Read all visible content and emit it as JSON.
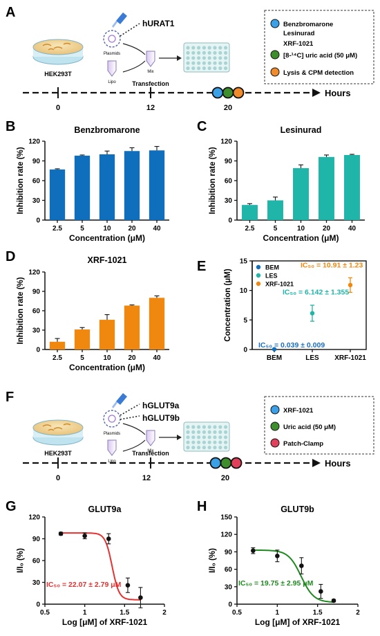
{
  "colors": {
    "bem": "#0f6fbd",
    "les": "#1fb5a8",
    "xrf": "#f0880f",
    "green": "#3a8f2e",
    "red_patch": "#e0405a",
    "glut9a_curve": "#e83030",
    "glut9b_curve": "#1e8a1e",
    "ic_blue": "#1a6fc0"
  },
  "panels": {
    "A": {
      "letter": "A",
      "target": "hURAT1",
      "cell": "HEK293T",
      "plasmids": "Plasmids",
      "lipo": "Lipo",
      "mix": "Mix",
      "transfection": "Transfection",
      "hours": "Hours",
      "ticks": [
        "0",
        "12",
        "20"
      ],
      "legend": [
        {
          "text": "Benzbromarone",
          "icon": "blue-dot"
        },
        {
          "text": "Lesinurad",
          "icon": ""
        },
        {
          "text": "XRF-1021",
          "icon": ""
        },
        {
          "text": "[8-¹⁴C] uric acid (50 μM)",
          "icon": "green-dot"
        },
        {
          "text": "Lysis & CPM detection",
          "icon": "orange-dot"
        }
      ]
    },
    "F": {
      "letter": "F",
      "target1": "hGLUT9a",
      "target2": "hGLUT9b",
      "cell": "HEK293T",
      "plasmids": "Plasmids",
      "lipo": "Lipo",
      "mix": "Mix",
      "transfection": "Transfection",
      "hours": "Hours",
      "ticks": [
        "0",
        "12",
        "20"
      ],
      "legend": [
        {
          "text": "XRF-1021",
          "icon": "blue-dot"
        },
        {
          "text": "Uric acid (50 μM)",
          "icon": "green-dot"
        },
        {
          "text": "Patch-Clamp",
          "icon": "red-dot"
        }
      ]
    }
  },
  "chart_data": [
    {
      "panel": "B",
      "type": "bar",
      "title": "Benzbromarone",
      "categories": [
        "2.5",
        "5",
        "10",
        "20",
        "40"
      ],
      "values": [
        77,
        98,
        100,
        105,
        106
      ],
      "errors": [
        1,
        1,
        5,
        5,
        6
      ],
      "xlabel": "Concentration (μM)",
      "ylabel": "Inhibition rate (%)",
      "ylim": [
        0,
        120
      ],
      "yticks": [
        0,
        30,
        60,
        90,
        120
      ],
      "color": "#0f6fbd"
    },
    {
      "panel": "C",
      "type": "bar",
      "title": "Lesinurad",
      "categories": [
        "2.5",
        "5",
        "10",
        "20",
        "40"
      ],
      "values": [
        23,
        30,
        79,
        96,
        99
      ],
      "errors": [
        2,
        5,
        5,
        3,
        1
      ],
      "xlabel": "Concentration (μM)",
      "ylabel": "Inhibition rate (%)",
      "ylim": [
        0,
        120
      ],
      "yticks": [
        0,
        30,
        60,
        90,
        120
      ],
      "color": "#1fb5a8"
    },
    {
      "panel": "D",
      "type": "bar",
      "title": "XRF-1021",
      "categories": [
        "2.5",
        "5",
        "10",
        "20",
        "40"
      ],
      "values": [
        12,
        31,
        46,
        68,
        80
      ],
      "errors": [
        5,
        3,
        8,
        1,
        3
      ],
      "xlabel": "Concentration (μM)",
      "ylabel": "Inhibition rate (%)",
      "ylim": [
        0,
        120
      ],
      "yticks": [
        0,
        30,
        60,
        90,
        120
      ],
      "color": "#f0880f"
    },
    {
      "panel": "E",
      "type": "scatter",
      "categories": [
        "BEM",
        "LES",
        "XRF-1021"
      ],
      "series": [
        {
          "name": "BEM",
          "value": 0.039,
          "error": 0.009,
          "color": "#0f6fbd"
        },
        {
          "name": "LES",
          "value": 6.142,
          "error": 1.355,
          "color": "#1fb5a8"
        },
        {
          "name": "XRF-1021",
          "value": 10.91,
          "error": 1.23,
          "color": "#f0880f"
        }
      ],
      "annotations": [
        {
          "text": "IC₅₀ = 0.039 ± 0.009",
          "color": "#1a6fc0"
        },
        {
          "text": "IC₅₀ = 6.142 ± 1.355",
          "color": "#1fb5a8"
        },
        {
          "text": "IC₅₀ = 10.91 ± 1.23",
          "color": "#f0880f"
        }
      ],
      "ylabel": "Concentration (μM)",
      "ylim": [
        0,
        15
      ],
      "yticks": [
        0,
        5,
        10,
        15
      ],
      "legend_position": "top-left"
    },
    {
      "panel": "G",
      "type": "line",
      "title": "GLUT9a",
      "x": [
        0.7,
        1.0,
        1.3,
        1.54,
        1.7
      ],
      "y": [
        97,
        94,
        90,
        26,
        9
      ],
      "errors": [
        2,
        4,
        7,
        10,
        14
      ],
      "annotation": "IC₅₀ = 22.07 ± 2.79 μM",
      "xlabel": "Log [μM] of XRF-1021",
      "ylabel": "I/I₀ (%)",
      "xlim": [
        0.5,
        2
      ],
      "xticks": [
        "0.5",
        "1",
        "1.5",
        "2"
      ],
      "ylim": [
        0,
        120
      ],
      "yticks": [
        0,
        30,
        60,
        90,
        120
      ],
      "color": "#e83030"
    },
    {
      "panel": "H",
      "type": "line",
      "title": "GLUT9b",
      "x": [
        0.7,
        1.0,
        1.3,
        1.54,
        1.7
      ],
      "y": [
        92,
        83,
        66,
        22,
        6
      ],
      "errors": [
        5,
        10,
        14,
        12,
        2
      ],
      "annotation": "IC₅₀ = 19.75 ± 2.95 μM",
      "xlabel": "Log [μM] of XRF-1021",
      "ylabel": "I/I₀ (%)",
      "xlim": [
        0.5,
        2
      ],
      "xticks": [
        "0.5",
        "1",
        "1.5",
        "2"
      ],
      "ylim": [
        0,
        150
      ],
      "yticks": [
        0,
        30,
        60,
        90,
        120,
        150
      ],
      "color": "#1e8a1e"
    }
  ]
}
